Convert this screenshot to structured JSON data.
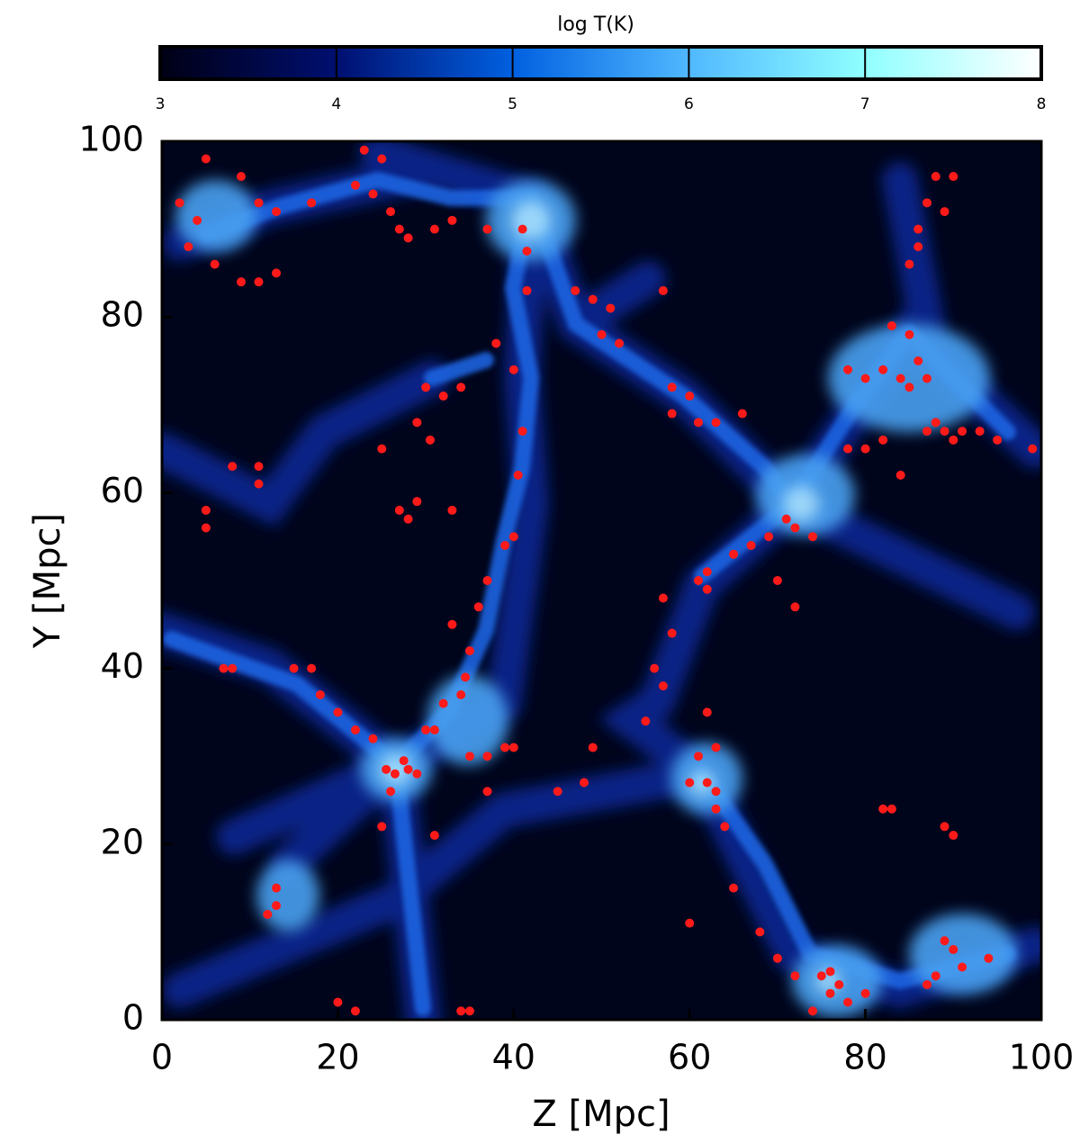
{
  "chart_data": {
    "type": "scatter",
    "xlabel": "Z [Mpc]",
    "ylabel": "Y [Mpc]",
    "xlim": [
      0,
      100
    ],
    "ylim": [
      0,
      100
    ],
    "xticks": [
      0,
      20,
      40,
      60,
      80,
      100
    ],
    "yticks": [
      0,
      20,
      40,
      60,
      80,
      100
    ],
    "colorbar": {
      "label": "log T(K)",
      "clim": [
        3,
        8
      ],
      "ticks": [
        3,
        4,
        5,
        6,
        7,
        8
      ],
      "colormap": [
        "#000014",
        "#000f70",
        "#0060e0",
        "#50b8ff",
        "#90ffff",
        "#ffffff"
      ]
    },
    "series": [
      {
        "color": "#ff1a1a",
        "x": [
          28,
          26.5,
          27.5,
          29,
          25.5,
          26,
          34,
          34.5,
          35,
          33,
          36,
          37,
          39,
          40,
          40.5,
          41,
          40,
          38,
          37,
          41,
          41.5,
          41.5,
          30,
          32,
          34,
          29,
          30.5,
          25,
          3,
          6,
          9,
          11,
          13,
          13,
          17,
          22,
          24,
          26,
          27,
          28,
          31,
          33,
          23,
          25,
          5,
          2,
          4,
          11,
          9,
          47,
          49,
          51,
          50,
          52,
          57,
          58,
          60,
          58,
          61,
          63,
          66,
          65,
          67,
          69,
          71,
          72,
          74,
          62,
          61,
          62,
          70,
          72,
          78,
          80,
          82,
          84,
          85,
          83,
          85,
          86,
          87,
          87,
          88,
          89,
          90,
          91,
          93,
          95,
          99,
          78,
          80,
          82,
          84,
          85,
          86,
          86,
          87,
          89,
          90,
          88,
          60,
          62,
          63,
          63,
          64,
          61,
          63,
          62,
          65,
          68,
          70,
          72,
          75,
          76,
          77,
          74,
          76,
          78,
          80,
          89,
          90,
          91,
          88,
          87,
          94,
          13,
          13,
          12,
          17,
          15,
          7,
          8,
          18,
          20,
          22,
          24,
          30,
          31,
          32,
          35,
          37,
          39,
          40,
          37,
          31,
          25,
          22,
          20,
          34,
          35,
          57,
          56,
          55,
          58,
          57,
          29,
          28,
          27,
          33,
          5,
          5,
          11,
          11,
          8,
          82,
          83,
          89,
          90,
          48,
          45,
          49,
          60
        ],
        "y": [
          28.5,
          28,
          29.5,
          28,
          28.5,
          26,
          37,
          39,
          42,
          45,
          47,
          50,
          54,
          55,
          62,
          67,
          74,
          77,
          90,
          90,
          87.5,
          83,
          72,
          71,
          72,
          68,
          66,
          65,
          88,
          86,
          84,
          84,
          85,
          92,
          93,
          95,
          94,
          92,
          90,
          89,
          90,
          91,
          99,
          98,
          98,
          93,
          91,
          93,
          96,
          83,
          82,
          81,
          78,
          77,
          83,
          72,
          71,
          69,
          68,
          68,
          69,
          53,
          54,
          55,
          57,
          56,
          55,
          51,
          50,
          49,
          50,
          47,
          74,
          73,
          74,
          73,
          72,
          79,
          78,
          75,
          73,
          67,
          68,
          67,
          66,
          67,
          67,
          66,
          65,
          65,
          65,
          66,
          62,
          86,
          88,
          90,
          93,
          92,
          96,
          96,
          27,
          27,
          26,
          24,
          22,
          30,
          31,
          35,
          15,
          10,
          7,
          5,
          5,
          5.5,
          4,
          1,
          3,
          2,
          3,
          9,
          8,
          6,
          5,
          4,
          7,
          15,
          13,
          12,
          40,
          40,
          40,
          40,
          37,
          35,
          33,
          32,
          33,
          33,
          36,
          30,
          30,
          31,
          31,
          26,
          21,
          22,
          1,
          2,
          1,
          1,
          38,
          40,
          34,
          44,
          48,
          59,
          57,
          58,
          58,
          56,
          58,
          63,
          61,
          63,
          24,
          24,
          22,
          21,
          27,
          26,
          31,
          11
        ]
      }
    ]
  }
}
